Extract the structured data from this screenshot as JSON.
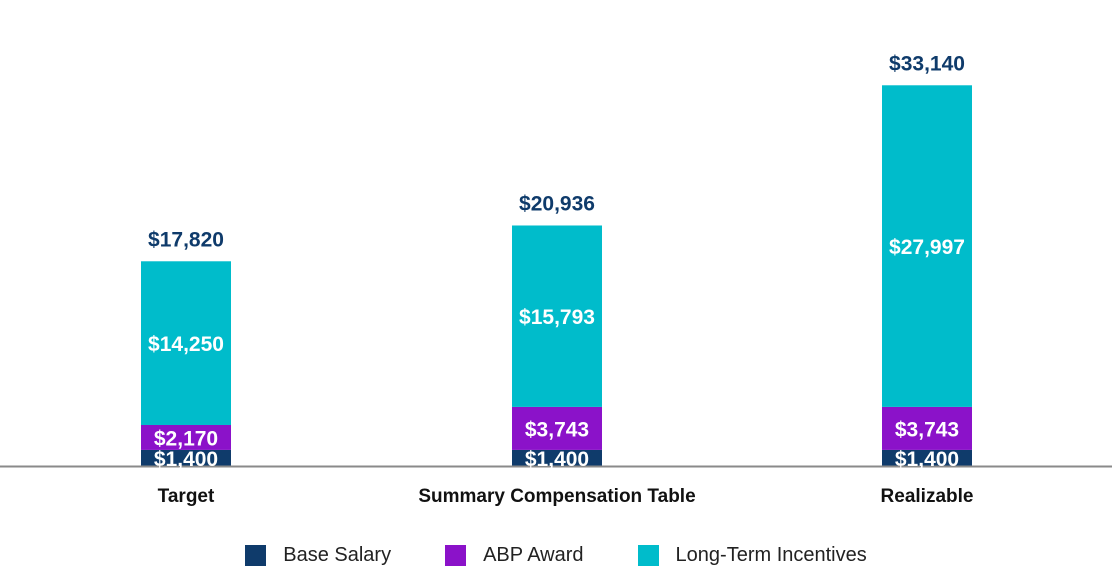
{
  "chart_data": {
    "type": "bar",
    "stacked": true,
    "title": "",
    "xlabel": "",
    "ylabel": "",
    "ylim": [
      0,
      36000
    ],
    "grid": false,
    "legend_position": "bottom-center",
    "categories": [
      "Target",
      "Summary Compensation Table",
      "Realizable"
    ],
    "series": [
      {
        "name": "Base Salary",
        "color": "#0f3b6b",
        "values": [
          1400,
          1400,
          1400
        ],
        "labels": [
          "$1,400",
          "$1,400",
          "$1,400"
        ]
      },
      {
        "name": "ABP Award",
        "color": "#8b12c9",
        "values": [
          2170,
          3743,
          3743
        ],
        "labels": [
          "$2,170",
          "$3,743",
          "$3,743"
        ]
      },
      {
        "name": "Long-Term Incentives",
        "color": "#00bccb",
        "values": [
          14250,
          15793,
          27997
        ],
        "labels": [
          "$14,250",
          "$15,793",
          "$27,997"
        ]
      }
    ],
    "totals": [
      17820,
      20936,
      33140
    ],
    "total_labels": [
      "$17,820",
      "$20,936",
      "$33,140"
    ]
  }
}
